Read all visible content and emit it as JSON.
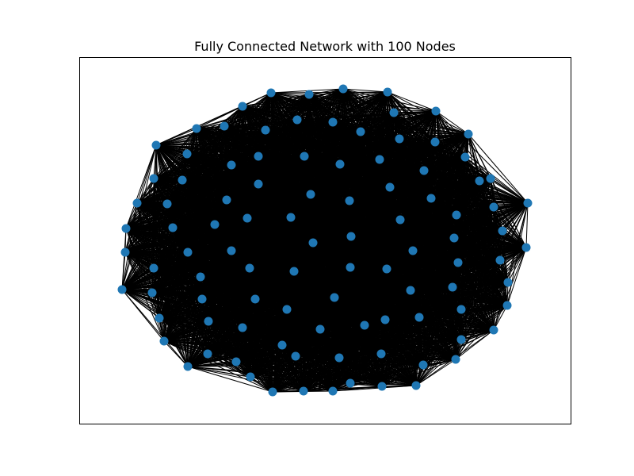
{
  "figure": {
    "title": "Fully Connected Network with 100 Nodes"
  },
  "colors": {
    "node": "#1f77b4",
    "edge": "#000000",
    "frame": "#000000",
    "background": "#ffffff"
  },
  "chart_data": {
    "type": "network",
    "title": "Fully Connected Network with 100 Nodes",
    "node_count": 100,
    "fully_connected": true,
    "edge_count": 4950,
    "axes_visible": false
  }
}
